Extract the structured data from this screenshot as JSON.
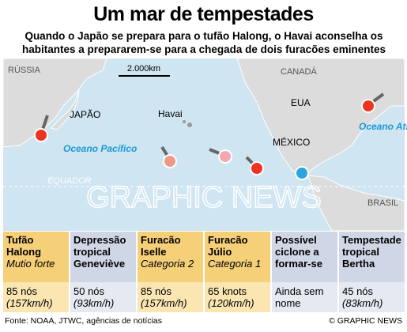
{
  "header": {
    "title": "Um mar de tempestades",
    "subtitle": "Quando o Japão se prepara para o tufão Halong, o Havai aconselha os habitantes a prepararem-se para a chegada de dois furacões eminentes"
  },
  "map": {
    "labels": {
      "russia": "RÚSSIA",
      "japan": "JAPÃO",
      "hawaii": "Havai",
      "canada": "CANADÁ",
      "usa": "EUA",
      "mexico": "MÉXICO",
      "brazil": "BRASIL",
      "equator": "EQUADOR"
    },
    "pacific": "Oceano Pacífico",
    "atlantic": "Oceano Atlântico",
    "scale": "2.000km",
    "watermark": "GRAPHIC NEWS"
  },
  "storms": [
    {
      "name": "Tufão Halong",
      "category": "Mutio forte",
      "speed": "85 nós",
      "speed_kmh": "(157km/h)"
    },
    {
      "name": "Depressão tropical Geneviève",
      "speed": "50 nós",
      "speed_kmh": "(93km/h)"
    },
    {
      "name": "Furacão Iselle",
      "category": "Categoria 2",
      "speed": "85 nós",
      "speed_kmh": "(157km/h)"
    },
    {
      "name": "Furacão Júlio",
      "category": "Categoria 1",
      "speed": "65 knots",
      "speed_kmh": "(120km/h)"
    },
    {
      "name": "Possível ciclone a formar-se",
      "speed": "Ainda sem nome"
    },
    {
      "name": "Tempestade tropical Bertha",
      "speed": "45 nós",
      "speed_kmh": "(83km/h)"
    }
  ],
  "footer": {
    "source": "Fonte: NOAA, JTWC, agências de notícias",
    "credit": "© GRAPHIC NEWS"
  }
}
